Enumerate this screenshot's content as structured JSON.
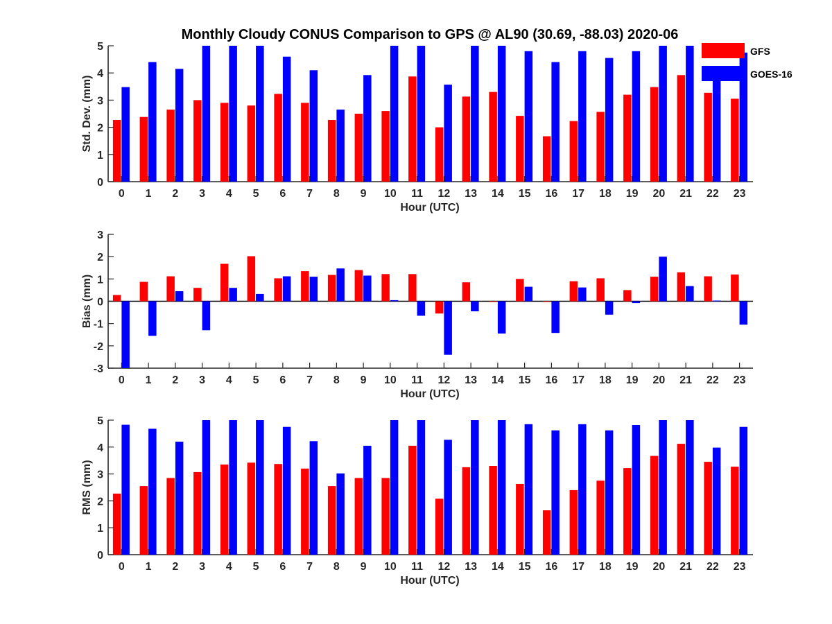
{
  "chart_data": [
    {
      "type": "bar",
      "title": "Monthly Cloudy CONUS Comparison to GPS @ AL90 (30.69, -88.03) 2020-06",
      "xlabel": "Hour (UTC)",
      "ylabel": "Std. Dev. (mm)",
      "ylim": [
        0,
        5
      ],
      "yticks": [
        0,
        1,
        2,
        3,
        4,
        5
      ],
      "categories": [
        "0",
        "1",
        "2",
        "3",
        "4",
        "5",
        "6",
        "7",
        "8",
        "9",
        "10",
        "11",
        "12",
        "13",
        "14",
        "15",
        "16",
        "17",
        "18",
        "19",
        "20",
        "21",
        "22",
        "23"
      ],
      "series": [
        {
          "name": "GFS",
          "color": "#ff0000",
          "values": [
            2.27,
            2.38,
            2.65,
            3.0,
            2.9,
            2.8,
            3.23,
            2.9,
            2.27,
            2.5,
            2.6,
            3.87,
            2.0,
            3.13,
            3.3,
            2.42,
            1.67,
            2.23,
            2.57,
            3.2,
            3.48,
            3.92,
            3.27,
            3.05
          ]
        },
        {
          "name": "GOES-16",
          "color": "#0000ff",
          "values": [
            3.48,
            4.4,
            4.15,
            5.0,
            5.0,
            5.0,
            4.6,
            4.1,
            2.65,
            3.92,
            5.0,
            5.0,
            3.57,
            5.0,
            5.0,
            4.8,
            4.4,
            4.8,
            4.55,
            4.8,
            5.0,
            5.0,
            3.95,
            4.75
          ]
        }
      ],
      "legend": "top-right"
    },
    {
      "type": "bar",
      "title": "",
      "xlabel": "Hour (UTC)",
      "ylabel": "Bias (mm)",
      "ylim": [
        -3,
        3
      ],
      "yticks": [
        -3,
        -2,
        -1,
        0,
        1,
        2,
        3
      ],
      "categories": [
        "0",
        "1",
        "2",
        "3",
        "4",
        "5",
        "6",
        "7",
        "8",
        "9",
        "10",
        "11",
        "12",
        "13",
        "14",
        "15",
        "16",
        "17",
        "18",
        "19",
        "20",
        "21",
        "22",
        "23"
      ],
      "series": [
        {
          "name": "GFS",
          "color": "#ff0000",
          "values": [
            0.28,
            0.87,
            1.12,
            0.6,
            1.68,
            2.02,
            1.03,
            1.35,
            1.18,
            1.4,
            1.22,
            1.22,
            -0.55,
            0.85,
            -0.03,
            1.0,
            -0.03,
            0.9,
            1.03,
            0.5,
            1.1,
            1.3,
            1.12,
            1.2
          ]
        },
        {
          "name": "GOES-16",
          "color": "#0000ff",
          "values": [
            -3.0,
            -1.55,
            0.45,
            -1.3,
            0.6,
            0.33,
            1.12,
            1.1,
            1.47,
            1.15,
            0.05,
            -0.65,
            -2.4,
            -0.45,
            -1.45,
            0.65,
            -1.42,
            0.62,
            -0.6,
            -0.08,
            2.0,
            0.68,
            0.03,
            -1.05
          ]
        }
      ]
    },
    {
      "type": "bar",
      "title": "",
      "xlabel": "Hour (UTC)",
      "ylabel": "RMS (mm)",
      "ylim": [
        0,
        5
      ],
      "yticks": [
        0,
        1,
        2,
        3,
        4,
        5
      ],
      "categories": [
        "0",
        "1",
        "2",
        "3",
        "4",
        "5",
        "6",
        "7",
        "8",
        "9",
        "10",
        "11",
        "12",
        "13",
        "14",
        "15",
        "16",
        "17",
        "18",
        "19",
        "20",
        "21",
        "22",
        "23"
      ],
      "series": [
        {
          "name": "GFS",
          "color": "#ff0000",
          "values": [
            2.27,
            2.55,
            2.85,
            3.07,
            3.35,
            3.42,
            3.37,
            3.2,
            2.55,
            2.85,
            2.85,
            4.05,
            2.08,
            3.25,
            3.3,
            2.63,
            1.65,
            2.4,
            2.75,
            3.22,
            3.67,
            4.12,
            3.45,
            3.27
          ]
        },
        {
          "name": "GOES-16",
          "color": "#0000ff",
          "values": [
            4.83,
            4.68,
            4.2,
            5.0,
            5.0,
            5.0,
            4.75,
            4.22,
            3.02,
            4.05,
            5.0,
            5.0,
            4.27,
            5.0,
            5.0,
            4.85,
            4.62,
            4.85,
            4.62,
            4.82,
            5.0,
            5.0,
            3.98,
            4.75
          ]
        }
      ]
    }
  ]
}
